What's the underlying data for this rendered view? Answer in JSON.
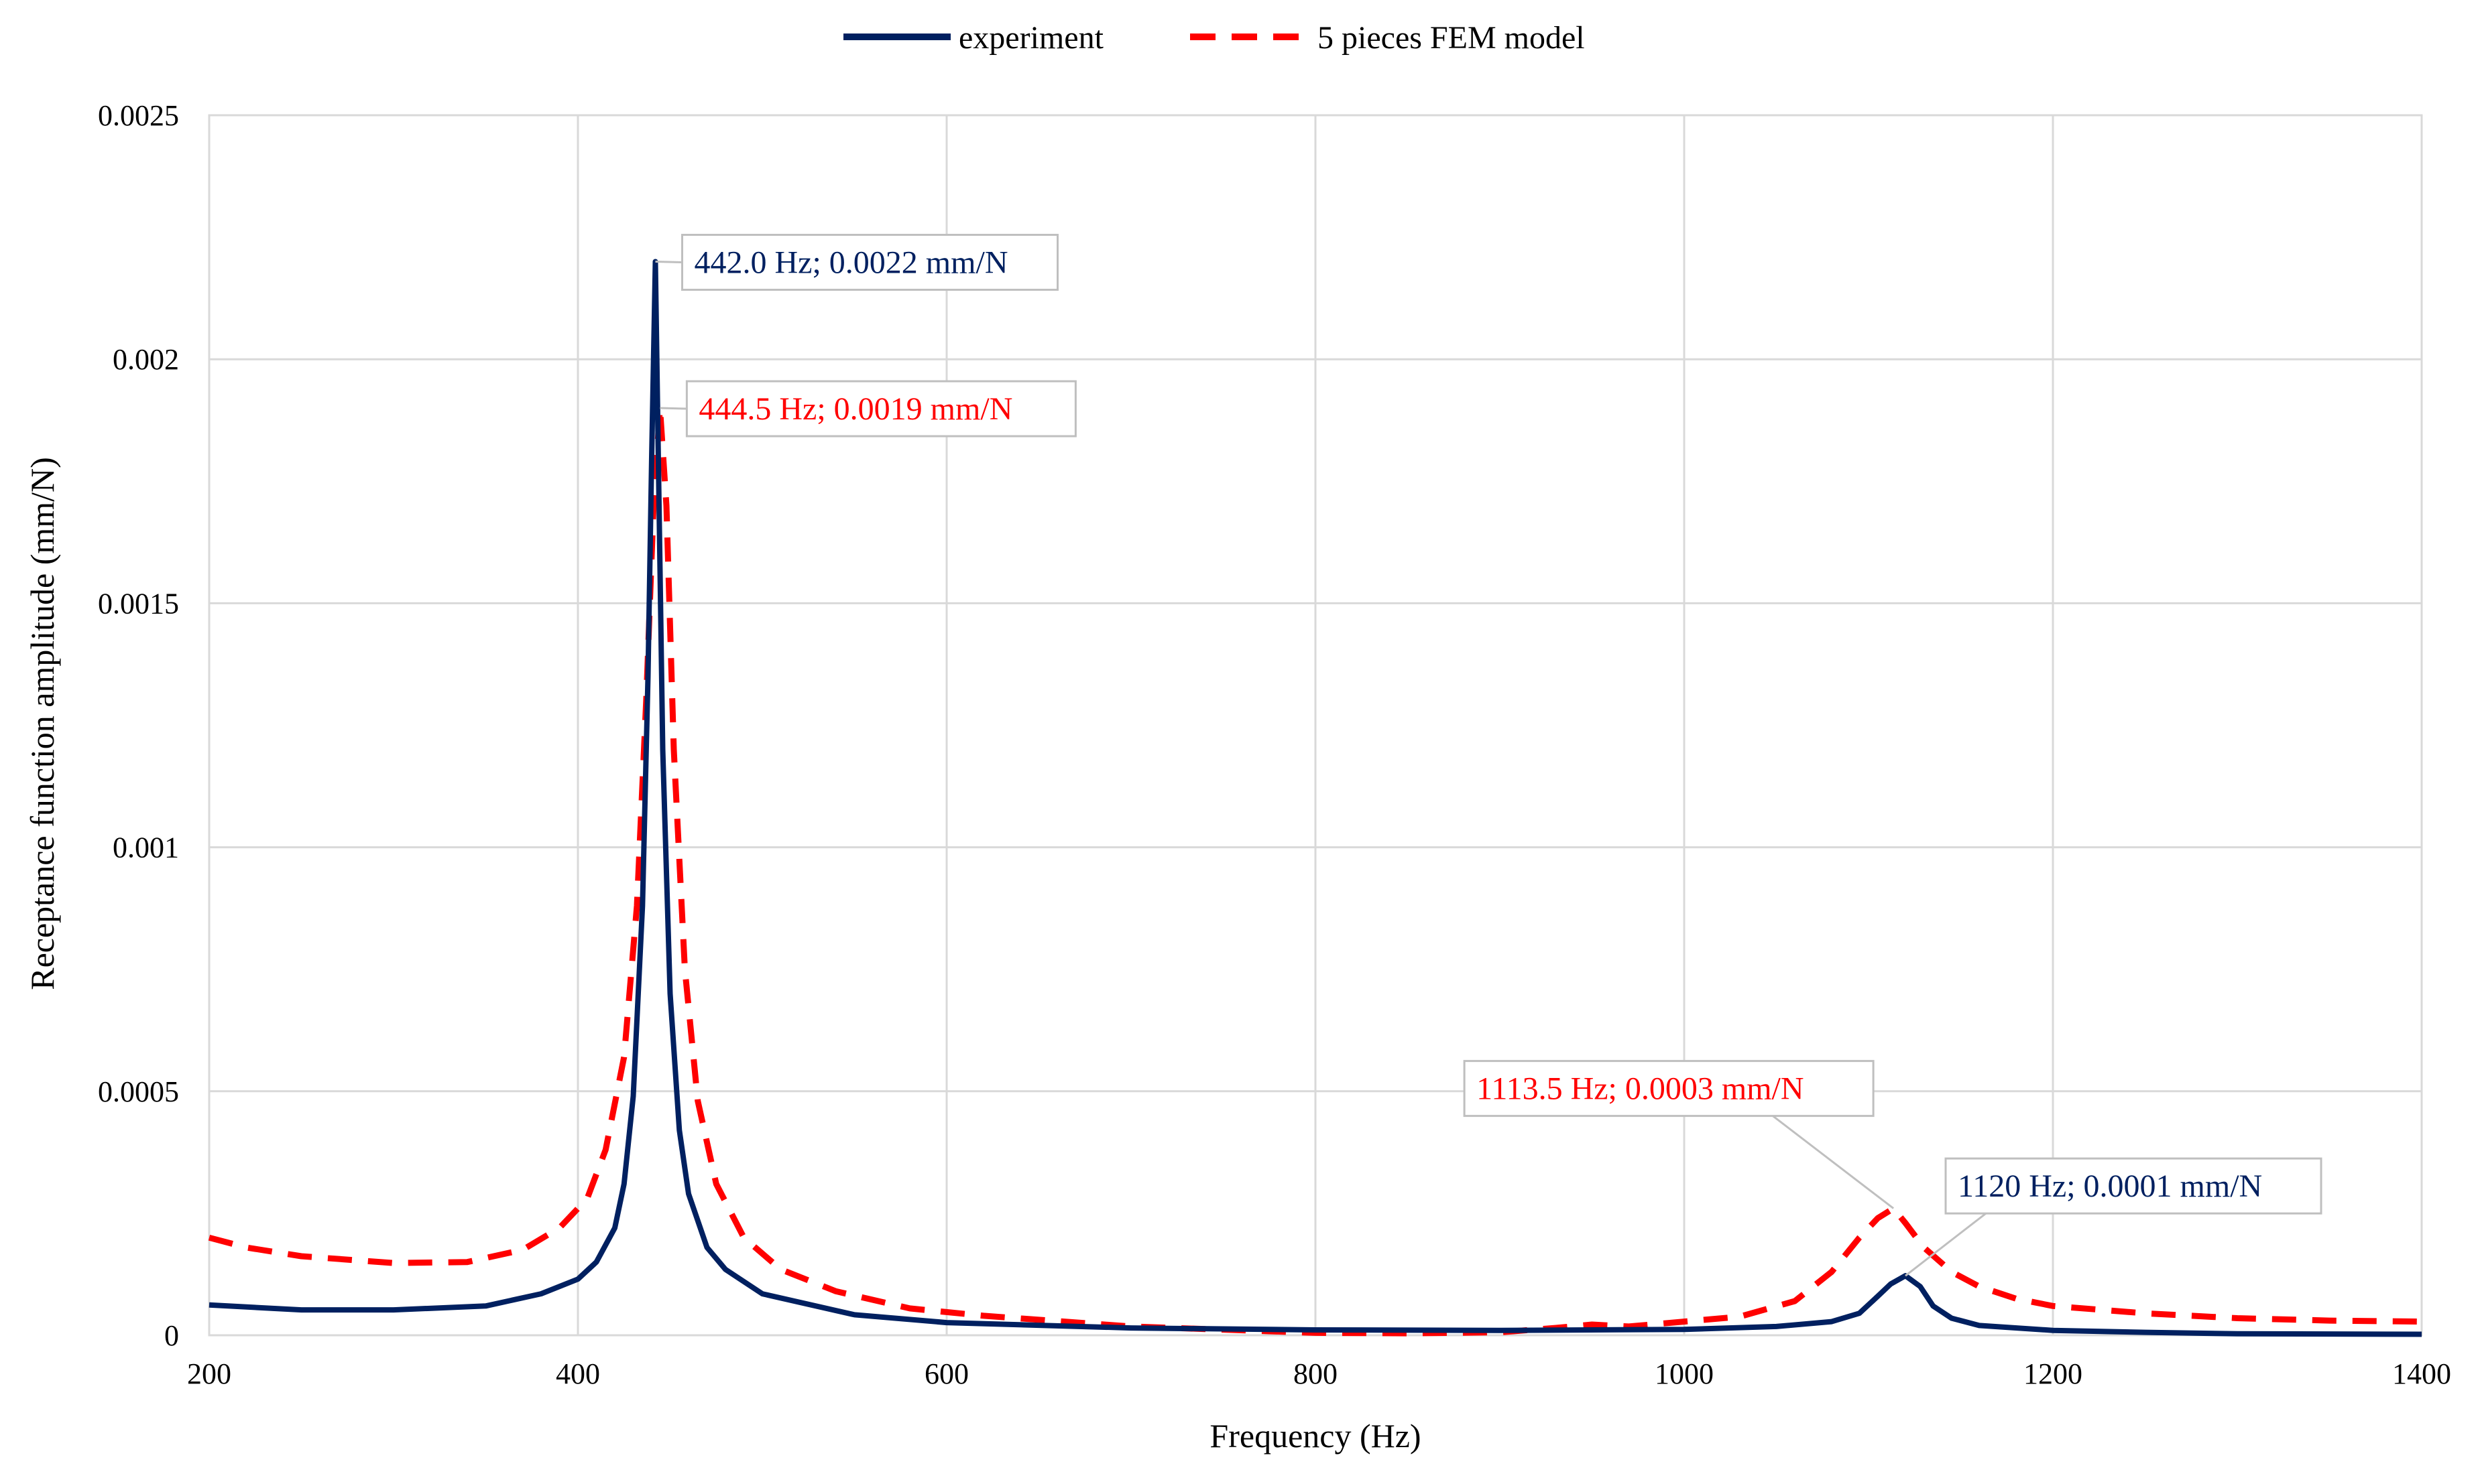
{
  "chart_data": {
    "type": "line",
    "title": "",
    "xlabel": "Frequency (Hz)",
    "ylabel": "Receptance function amplitude (mm/N)",
    "xlim": [
      200,
      1400
    ],
    "ylim": [
      0,
      0.0025
    ],
    "x_ticks": [
      200,
      400,
      600,
      800,
      1000,
      1200,
      1400
    ],
    "x_tick_labels": [
      "200",
      "400",
      "600",
      "800",
      "1000",
      "1200",
      "1400"
    ],
    "y_ticks": [
      0,
      0.0005,
      0.001,
      0.0015,
      0.002,
      0.0025
    ],
    "y_tick_labels": [
      "0",
      "0.0005",
      "0.001",
      "0.0015",
      "0.002",
      "0.0025"
    ],
    "grid": true,
    "legend_position": "top-center",
    "series": [
      {
        "name": "experiment",
        "style": "solid",
        "color": "#002060",
        "x": [
          200,
          250,
          300,
          350,
          380,
          400,
          410,
          420,
          425,
          430,
          435,
          438,
          440,
          442,
          444,
          446,
          450,
          455,
          460,
          470,
          480,
          500,
          550,
          600,
          700,
          800,
          900,
          1000,
          1050,
          1080,
          1095,
          1105,
          1112,
          1120,
          1128,
          1135,
          1145,
          1160,
          1200,
          1250,
          1300,
          1400
        ],
        "y": [
          6.2e-05,
          5.2e-05,
          5.2e-05,
          6e-05,
          8.5e-05,
          0.000115,
          0.00015,
          0.00022,
          0.00031,
          0.00049,
          0.00088,
          0.00135,
          0.0018,
          0.0022,
          0.0017,
          0.0012,
          0.0007,
          0.00042,
          0.00029,
          0.00018,
          0.000135,
          8.5e-05,
          4.2e-05,
          2.6e-05,
          1.5e-05,
          1.1e-05,
          1e-05,
          1.2e-05,
          1.8e-05,
          2.8e-05,
          4.5e-05,
          8e-05,
          0.000105,
          0.000122,
          0.0001,
          6e-05,
          3.5e-05,
          2e-05,
          1e-05,
          6e-06,
          3e-06,
          2e-06
        ]
      },
      {
        "name": "5 pieces FEM model",
        "style": "dashed",
        "color": "#ff0000",
        "x": [
          200,
          220,
          250,
          300,
          340,
          370,
          390,
          405,
          415,
          425,
          432,
          437,
          441,
          444.5,
          448,
          452,
          458,
          465,
          475,
          490,
          510,
          540,
          580,
          620,
          700,
          800,
          850,
          900,
          930,
          950,
          970,
          1000,
          1030,
          1060,
          1080,
          1095,
          1105,
          1113.5,
          1120,
          1130,
          1145,
          1160,
          1180,
          1200,
          1250,
          1300,
          1350,
          1400
        ],
        "y": [
          0.0002,
          0.00018,
          0.000162,
          0.000148,
          0.00015,
          0.000175,
          0.00022,
          0.00028,
          0.00038,
          0.00057,
          0.00088,
          0.0013,
          0.0017,
          0.0019,
          0.0017,
          0.0012,
          0.00075,
          0.00048,
          0.00031,
          0.0002,
          0.000135,
          9e-05,
          5.5e-05,
          4e-05,
          1.8e-05,
          5e-06,
          4e-06,
          6e-06,
          1.5e-05,
          2.2e-05,
          1.8e-05,
          2.8e-05,
          3.8e-05,
          7e-05,
          0.00013,
          0.0002,
          0.00024,
          0.00026,
          0.00023,
          0.00018,
          0.00013,
          0.0001,
          7.5e-05,
          6e-05,
          4.5e-05,
          3.5e-05,
          3e-05,
          2.8e-05
        ]
      }
    ],
    "annotations": [
      {
        "text": "442.0 Hz; 0.0022 mm/N",
        "x": 442.0,
        "y": 0.0022,
        "series": "experiment",
        "color": "#002060",
        "placement": "right"
      },
      {
        "text": "444.5 Hz; 0.0019 mm/N",
        "x": 444.5,
        "y": 0.0019,
        "series": "5 pieces FEM model",
        "color": "#ff0000",
        "placement": "right"
      },
      {
        "text": "1113.5 Hz; 0.0003 mm/N",
        "x": 1113.5,
        "y": 0.00026,
        "series": "5 pieces FEM model",
        "color": "#ff0000",
        "placement": "upper-left"
      },
      {
        "text": "1120 Hz; 0.0001 mm/N",
        "x": 1120,
        "y": 0.000122,
        "series": "experiment",
        "color": "#002060",
        "placement": "upper-right"
      }
    ]
  }
}
